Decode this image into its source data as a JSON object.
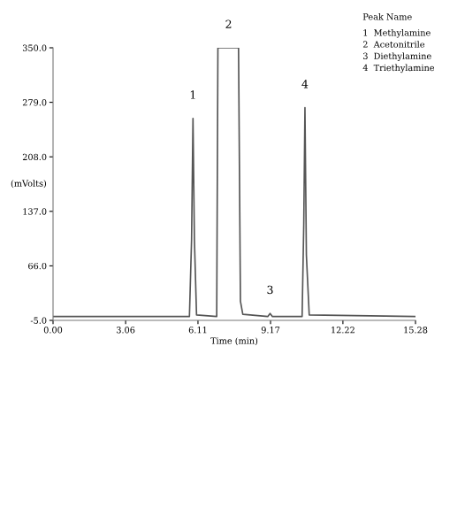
{
  "chart_data": {
    "type": "line",
    "xlabel": "Time (min)",
    "ylabel": "(mVolts)",
    "x": [
      0,
      5.75,
      5.84,
      5.9,
      5.96,
      6.05,
      6.9,
      6.95,
      7.0,
      7.75,
      7.82,
      7.9,
      8.0,
      9.05,
      9.15,
      9.25,
      10.5,
      10.57,
      10.62,
      10.68,
      10.8,
      15.28
    ],
    "series": [
      {
        "color": "#555555",
        "values": [
          0,
          0,
          100,
          258,
          100,
          2,
          0,
          350,
          350,
          350,
          350,
          20,
          3,
          0,
          4,
          0,
          0,
          120,
          272,
          80,
          2,
          0
        ]
      }
    ],
    "xlim": [
      0,
      15.28
    ],
    "xticks": [
      {
        "value": 0,
        "label": "0.00"
      },
      {
        "value": 3.06,
        "label": "3.06"
      },
      {
        "value": 6.11,
        "label": "6.11"
      },
      {
        "value": 9.17,
        "label": "9.17"
      },
      {
        "value": 12.22,
        "label": "12.22"
      },
      {
        "value": 15.28,
        "label": "15.28"
      }
    ],
    "ylim": [
      -5,
      350
    ],
    "yticks": [
      {
        "value": -5,
        "label": "-5.0"
      },
      {
        "value": 66,
        "label": "66.0"
      },
      {
        "value": 137,
        "label": "137.0"
      },
      {
        "value": 208,
        "label": "208.0"
      },
      {
        "value": 279,
        "label": "279.0"
      },
      {
        "value": 350,
        "label": "350.0"
      }
    ],
    "grid": false,
    "legend": false,
    "annotations": [
      {
        "text": "1",
        "x": 5.9,
        "y": 258
      },
      {
        "text": "2",
        "x": 7.4,
        "y": 350
      },
      {
        "text": "3",
        "x": 9.15,
        "y": 4
      },
      {
        "text": "4",
        "x": 10.62,
        "y": 272
      },
      "Peak Name",
      "1  Methylamine",
      "2  Acetonitrile",
      "3  Diethylamine",
      "4  Triethylamine"
    ]
  }
}
